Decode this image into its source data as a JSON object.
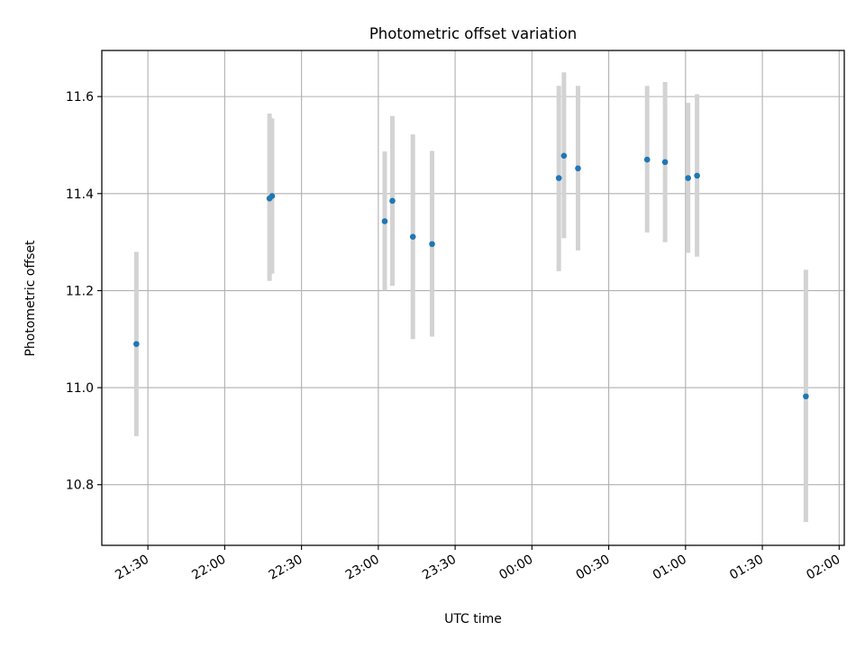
{
  "chart_data": {
    "type": "scatter",
    "title": "Photometric offset variation",
    "xlabel": "UTC time",
    "ylabel": "Photometric offset",
    "grid": true,
    "x_ticks": [
      "21:30",
      "22:00",
      "22:30",
      "23:00",
      "23:30",
      "00:00",
      "00:30",
      "01:00",
      "01:30",
      "02:00"
    ],
    "y_ticks": [
      "10.8",
      "11.0",
      "11.2",
      "11.4",
      "11.6"
    ],
    "x_unit": "minutes after 21:30 UTC",
    "xlim": [
      -18,
      272
    ],
    "ylim": [
      10.675,
      11.695
    ],
    "colors": {
      "point": "#1f77b4",
      "errorbar": "#d3d3d3",
      "grid": "#b0b0b0"
    },
    "points": [
      {
        "time": "21:26",
        "x": -4.5,
        "y": 11.09,
        "yerr_low": 10.9,
        "yerr_high": 11.28
      },
      {
        "time": "22:18",
        "x": 47.5,
        "y": 11.39,
        "yerr_low": 11.22,
        "yerr_high": 11.565
      },
      {
        "time": "22:18",
        "x": 48.5,
        "y": 11.395,
        "yerr_low": 11.235,
        "yerr_high": 11.555
      },
      {
        "time": "23:02",
        "x": 92.5,
        "y": 11.343,
        "yerr_low": 11.2,
        "yerr_high": 11.487
      },
      {
        "time": "23:05",
        "x": 95.5,
        "y": 11.385,
        "yerr_low": 11.21,
        "yerr_high": 11.56
      },
      {
        "time": "23:13",
        "x": 103.5,
        "y": 11.311,
        "yerr_low": 11.1,
        "yerr_high": 11.522
      },
      {
        "time": "23:21",
        "x": 111,
        "y": 11.296,
        "yerr_low": 11.105,
        "yerr_high": 11.488
      },
      {
        "time": "00:11",
        "x": 160.5,
        "y": 11.432,
        "yerr_low": 11.24,
        "yerr_high": 11.622
      },
      {
        "time": "00:13",
        "x": 162.5,
        "y": 11.478,
        "yerr_low": 11.308,
        "yerr_high": 11.65
      },
      {
        "time": "00:18",
        "x": 168,
        "y": 11.452,
        "yerr_low": 11.283,
        "yerr_high": 11.622
      },
      {
        "time": "00:45",
        "x": 195,
        "y": 11.47,
        "yerr_low": 11.32,
        "yerr_high": 11.622
      },
      {
        "time": "00:52",
        "x": 202,
        "y": 11.465,
        "yerr_low": 11.3,
        "yerr_high": 11.63
      },
      {
        "time": "01:01",
        "x": 211,
        "y": 11.432,
        "yerr_low": 11.278,
        "yerr_high": 11.587
      },
      {
        "time": "01:04",
        "x": 214.5,
        "y": 11.437,
        "yerr_low": 11.27,
        "yerr_high": 11.605
      },
      {
        "time": "01:47",
        "x": 257,
        "y": 10.982,
        "yerr_low": 10.723,
        "yerr_high": 11.243
      }
    ]
  }
}
